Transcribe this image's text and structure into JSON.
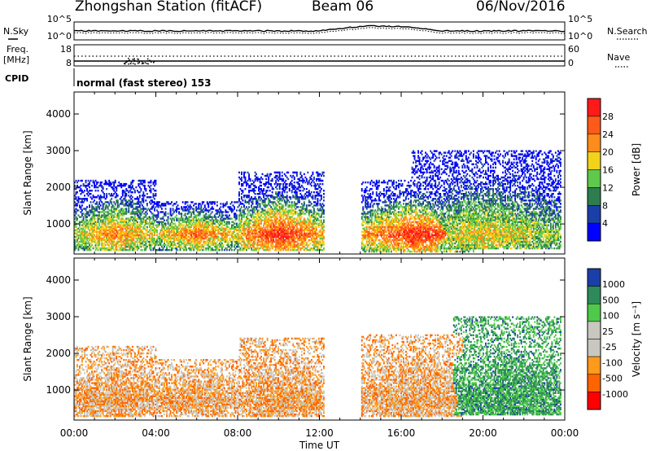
{
  "header": {
    "station": "Zhongshan Station (fitACF)",
    "beam": "Beam 06",
    "date": "06/Nov/2016"
  },
  "top_panels": {
    "nsky_label": "N.Sky",
    "nsky_ticks": [
      "10^5",
      "10^0"
    ],
    "nsearch_label": "N.Search",
    "nsearch_ticks": [
      "10^5",
      "10^0"
    ],
    "freq_label_1": "Freq.",
    "freq_label_2": "[MHz]",
    "freq_ticks": [
      "18",
      "8"
    ],
    "nave_label": "Nave",
    "nave_ticks": [
      "60",
      "0"
    ],
    "cpid_label": "CPID",
    "cpid_text": "normal (fast stereo) 153"
  },
  "chart_data": [
    {
      "type": "heatmap",
      "name": "power",
      "ylabel": "Slant Range [km]",
      "yticks": [
        "4000",
        "3000",
        "2000",
        "1000"
      ],
      "ylim": [
        180,
        4600
      ],
      "xlim": [
        0,
        24
      ],
      "colorbar_label": "Power [dB]",
      "colorbar_ticks": [
        "28",
        "24",
        "20",
        "16",
        "12",
        "8",
        "4"
      ],
      "colorscale": [
        "#0000ff",
        "#1a3fa8",
        "#2e7d4f",
        "#5ec94a",
        "#f2d21b",
        "#ff8c1a",
        "#ff5a1a",
        "#ff1a1a"
      ],
      "regions": [
        {
          "t": [
            0.0,
            4.0
          ],
          "r": [
            250,
            2200
          ],
          "peak": 22
        },
        {
          "t": [
            4.0,
            8.0
          ],
          "r": [
            250,
            1600
          ],
          "peak": 24
        },
        {
          "t": [
            8.0,
            12.2
          ],
          "r": [
            250,
            2400
          ],
          "peak": 28
        },
        {
          "t": [
            14.0,
            19.5
          ],
          "r": [
            200,
            2200
          ],
          "peak": 28
        },
        {
          "t": [
            16.5,
            23.8
          ],
          "r": [
            300,
            3000
          ],
          "peak": 18
        }
      ]
    },
    {
      "type": "heatmap",
      "name": "velocity",
      "ylabel": "Slant Range [km]",
      "yticks": [
        "4000",
        "3000",
        "2000",
        "1000"
      ],
      "ylim": [
        180,
        4600
      ],
      "xlim": [
        0,
        24
      ],
      "xticks": [
        "00:00",
        "04:00",
        "08:00",
        "12:00",
        "16:00",
        "20:00",
        "00:00"
      ],
      "xlabel": "Time UT",
      "colorbar_label": "Velocity [m s⁻¹]",
      "colorbar_ticks": [
        "1000",
        "500",
        "100",
        "25",
        "-25",
        "-100",
        "-500",
        "-1000"
      ],
      "colorscale": [
        "#ff0000",
        "#ff6400",
        "#ff9a1a",
        "#c8c8c0",
        "#c8c8c0",
        "#4ec94a",
        "#2e8a5a",
        "#1a3fa8"
      ],
      "regions": [
        {
          "t": [
            0.0,
            4.0
          ],
          "r": [
            250,
            2200
          ],
          "v": -300
        },
        {
          "t": [
            4.0,
            8.0
          ],
          "r": [
            250,
            1800
          ],
          "v": -200
        },
        {
          "t": [
            8.0,
            12.2
          ],
          "r": [
            250,
            2400
          ],
          "v": -400
        },
        {
          "t": [
            14.0,
            19.0
          ],
          "r": [
            250,
            2500
          ],
          "v": -300
        },
        {
          "t": [
            18.5,
            23.8
          ],
          "r": [
            300,
            3000
          ],
          "v": 200
        }
      ]
    }
  ],
  "colors": {
    "axis": "#000000",
    "background": "#ffffff"
  }
}
